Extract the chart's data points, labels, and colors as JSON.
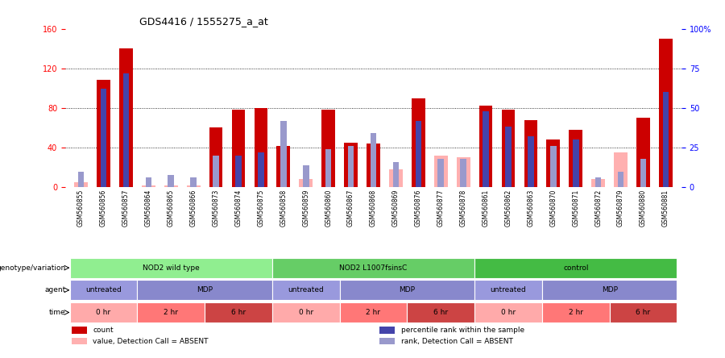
{
  "title": "GDS4416 / 1555275_a_at",
  "samples": [
    "GSM560855",
    "GSM560856",
    "GSM560857",
    "GSM560864",
    "GSM560865",
    "GSM560866",
    "GSM560873",
    "GSM560874",
    "GSM560875",
    "GSM560858",
    "GSM560859",
    "GSM560860",
    "GSM560867",
    "GSM560868",
    "GSM560869",
    "GSM560876",
    "GSM560877",
    "GSM560878",
    "GSM560861",
    "GSM560862",
    "GSM560863",
    "GSM560870",
    "GSM560871",
    "GSM560872",
    "GSM560879",
    "GSM560880",
    "GSM560881"
  ],
  "count_values": [
    5,
    108,
    140,
    2,
    2,
    2,
    60,
    78,
    80,
    42,
    8,
    78,
    45,
    44,
    18,
    90,
    32,
    30,
    82,
    78,
    68,
    48,
    58,
    8,
    35,
    70,
    150
  ],
  "rank_values": [
    10,
    62,
    72,
    6,
    8,
    6,
    20,
    20,
    22,
    42,
    14,
    24,
    26,
    34,
    16,
    42,
    18,
    18,
    48,
    38,
    32,
    26,
    30,
    6,
    10,
    18,
    60
  ],
  "absent_count": [
    true,
    false,
    false,
    true,
    true,
    true,
    false,
    false,
    false,
    false,
    true,
    false,
    false,
    false,
    true,
    false,
    true,
    true,
    false,
    false,
    false,
    false,
    false,
    true,
    true,
    false,
    false
  ],
  "absent_rank": [
    true,
    false,
    false,
    true,
    true,
    true,
    true,
    false,
    false,
    true,
    true,
    true,
    true,
    true,
    true,
    false,
    true,
    true,
    false,
    false,
    false,
    true,
    false,
    true,
    true,
    true,
    false
  ],
  "genotype_groups": [
    {
      "label": "NOD2 wild type",
      "start": 0,
      "end": 9,
      "color": "#90EE90"
    },
    {
      "label": "NOD2 L1007fsinsC",
      "start": 9,
      "end": 18,
      "color": "#66CD66"
    },
    {
      "label": "control",
      "start": 18,
      "end": 27,
      "color": "#44BB44"
    }
  ],
  "agent_groups": [
    {
      "label": "untreated",
      "start": 0,
      "end": 3,
      "color": "#9999DD"
    },
    {
      "label": "MDP",
      "start": 3,
      "end": 9,
      "color": "#8888CC"
    },
    {
      "label": "untreated",
      "start": 9,
      "end": 12,
      "color": "#9999DD"
    },
    {
      "label": "MDP",
      "start": 12,
      "end": 18,
      "color": "#8888CC"
    },
    {
      "label": "untreated",
      "start": 18,
      "end": 21,
      "color": "#9999DD"
    },
    {
      "label": "MDP",
      "start": 21,
      "end": 27,
      "color": "#8888CC"
    }
  ],
  "time_groups": [
    {
      "label": "0 hr",
      "start": 0,
      "end": 3,
      "color": "#FFAAAA"
    },
    {
      "label": "2 hr",
      "start": 3,
      "end": 6,
      "color": "#FF7777"
    },
    {
      "label": "6 hr",
      "start": 6,
      "end": 9,
      "color": "#CC4444"
    },
    {
      "label": "0 hr",
      "start": 9,
      "end": 12,
      "color": "#FFAAAA"
    },
    {
      "label": "2 hr",
      "start": 12,
      "end": 15,
      "color": "#FF7777"
    },
    {
      "label": "6 hr",
      "start": 15,
      "end": 18,
      "color": "#CC4444"
    },
    {
      "label": "0 hr",
      "start": 18,
      "end": 21,
      "color": "#FFAAAA"
    },
    {
      "label": "2 hr",
      "start": 21,
      "end": 24,
      "color": "#FF7777"
    },
    {
      "label": "6 hr",
      "start": 24,
      "end": 27,
      "color": "#CC4444"
    }
  ],
  "ylim": [
    0,
    160
  ],
  "yticks": [
    0,
    40,
    80,
    120,
    160
  ],
  "y2ticks": [
    0,
    25,
    50,
    75,
    100
  ],
  "bar_width": 0.6,
  "count_color": "#CC0000",
  "rank_color": "#4444AA",
  "count_absent_color": "#FFB0B0",
  "rank_absent_color": "#9999CC",
  "bg_color": "#FFFFFF",
  "tick_area_color": "#DDDDDD"
}
